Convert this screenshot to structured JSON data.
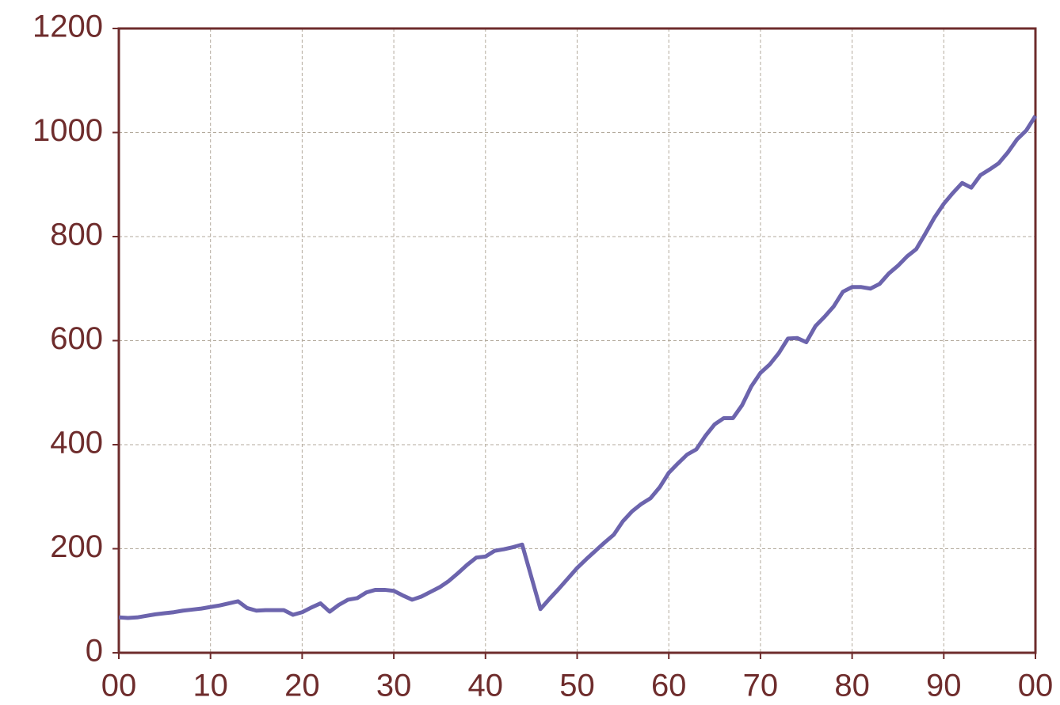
{
  "chart_data": {
    "type": "line",
    "x": [
      0,
      1,
      2,
      3,
      4,
      5,
      6,
      7,
      8,
      9,
      10,
      11,
      12,
      13,
      14,
      15,
      16,
      17,
      18,
      19,
      20,
      21,
      22,
      23,
      24,
      25,
      26,
      27,
      28,
      29,
      30,
      31,
      32,
      33,
      34,
      35,
      36,
      37,
      38,
      39,
      40,
      41,
      42,
      43,
      44,
      45,
      46,
      47,
      48,
      49,
      50,
      51,
      52,
      53,
      54,
      55,
      56,
      57,
      58,
      59,
      60,
      61,
      62,
      63,
      64,
      65,
      66,
      67,
      68,
      69,
      70,
      71,
      72,
      73,
      74,
      75,
      76,
      77,
      78,
      79,
      80,
      81,
      82,
      83,
      84,
      85,
      86,
      87,
      88,
      89,
      90,
      91,
      92,
      93,
      94,
      95,
      96,
      97,
      98,
      99,
      100
    ],
    "series": [
      {
        "color": "#6c64ad",
        "values": [
          68,
          67,
          68,
          71,
          74,
          76,
          78,
          81,
          83,
          85,
          88,
          91,
          95,
          99,
          86,
          81,
          82,
          82,
          82,
          73,
          78,
          87,
          95,
          79,
          92,
          102,
          105,
          116,
          121,
          121,
          119,
          110,
          102,
          108,
          117,
          126,
          138,
          153,
          169,
          183,
          185,
          196,
          199,
          203,
          208,
          146,
          84,
          104,
          123,
          143,
          163,
          180,
          196,
          212,
          227,
          253,
          272,
          286,
          297,
          318,
          346,
          364,
          381,
          391,
          417,
          439,
          451,
          451,
          476,
          512,
          538,
          554,
          576,
          604,
          605,
          597,
          628,
          646,
          666,
          694,
          703,
          703,
          700,
          709,
          729,
          744,
          762,
          776,
          806,
          837,
          863,
          884,
          903,
          894,
          918,
          929,
          941,
          962,
          987,
          1004,
          1032
        ]
      }
    ],
    "xlim": [
      0,
      100
    ],
    "ylim": [
      0,
      1200
    ],
    "xticks": [
      {
        "value": 0,
        "label": "00"
      },
      10,
      20,
      30,
      40,
      50,
      60,
      70,
      80,
      90,
      {
        "value": 100,
        "label": "00"
      }
    ],
    "yticks": [
      0,
      200,
      400,
      600,
      800,
      1000,
      1200
    ],
    "grid": true,
    "frame_color": "#6e2c2c"
  }
}
